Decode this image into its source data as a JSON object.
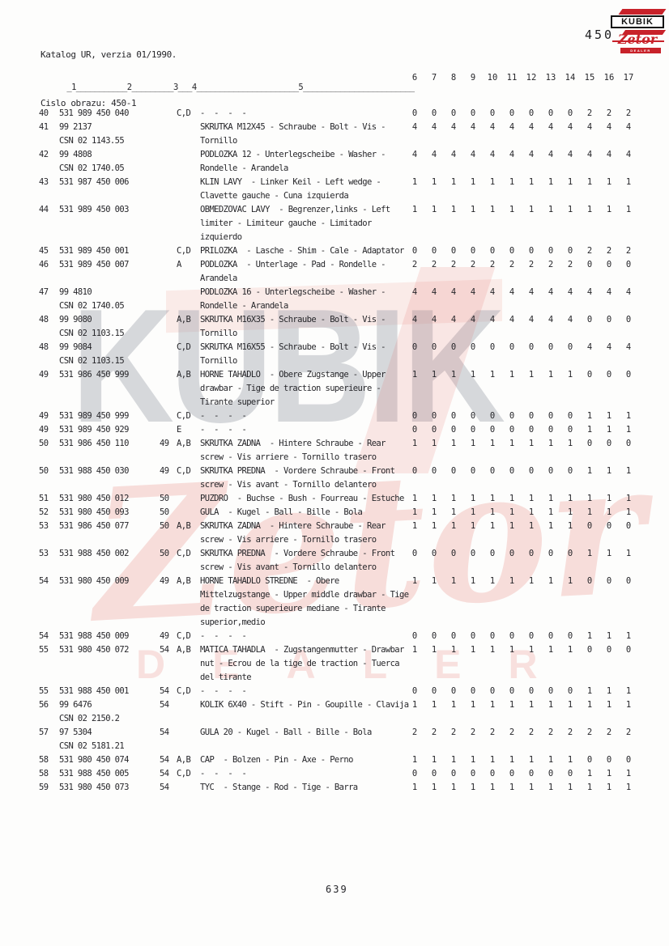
{
  "header": {
    "line1": "Katalog UR, verzia 01/1990.",
    "line2": "Cislo obrazu: 450-1",
    "page_ref": "450"
  },
  "logo": {
    "name": "KUBIK",
    "brand": "Zetor",
    "dealer": "DEALER"
  },
  "watermark": {
    "kubik": "KUBIK",
    "zetor": "Zetor",
    "dealer": "DEALER"
  },
  "colors": {
    "accent_red": "#c8222a",
    "text_ink": "#26262a"
  },
  "columns": {
    "ruler": "_1___________2_________3___4______________________5________________________",
    "qty_headers": [
      "6",
      "7",
      "8",
      "9",
      "10",
      "11",
      "12",
      "13",
      "14",
      "15",
      "16",
      "17"
    ]
  },
  "rows": [
    {
      "no": "40",
      "part": "531 989 450 040",
      "csn": "",
      "ref": "",
      "var": "C,D",
      "desc": [
        "-  -  -  -"
      ],
      "qty": [
        0,
        0,
        0,
        0,
        0,
        0,
        0,
        0,
        0,
        2,
        2,
        2
      ]
    },
    {
      "no": "41",
      "part": "99 2137",
      "csn": "CSN 02 1143.55",
      "ref": "",
      "var": "",
      "desc": [
        "SKRUTKA M12X45 - Schraube - Bolt - Vis -",
        "Tornillo"
      ],
      "qty": [
        4,
        4,
        4,
        4,
        4,
        4,
        4,
        4,
        4,
        4,
        4,
        4
      ]
    },
    {
      "no": "42",
      "part": "99 4808",
      "csn": "CSN 02 1740.05",
      "ref": "",
      "var": "",
      "desc": [
        "PODLOZKA 12 - Unterlegscheibe - Washer -",
        "Rondelle - Arandela"
      ],
      "qty": [
        4,
        4,
        4,
        4,
        4,
        4,
        4,
        4,
        4,
        4,
        4,
        4
      ]
    },
    {
      "no": "43",
      "part": "531 987 450 006",
      "csn": "",
      "ref": "",
      "var": "",
      "desc": [
        "KLIN LAVY  - Linker Keil - Left wedge -",
        "Clavette gauche - Cuna izquierda"
      ],
      "qty": [
        1,
        1,
        1,
        1,
        1,
        1,
        1,
        1,
        1,
        1,
        1,
        1
      ]
    },
    {
      "no": "44",
      "part": "531 989 450 003",
      "csn": "",
      "ref": "",
      "var": "",
      "desc": [
        "OBMEDZOVAC LAVY  - Begrenzer,links - Left",
        "limiter - Limiteur gauche - Limitador",
        "izquierdo"
      ],
      "qty": [
        1,
        1,
        1,
        1,
        1,
        1,
        1,
        1,
        1,
        1,
        1,
        1
      ]
    },
    {
      "no": "45",
      "part": "531 989 450 001",
      "csn": "",
      "ref": "",
      "var": "C,D",
      "desc": [
        "PRILOZKA  - Lasche - Shim - Cale - Adaptator"
      ],
      "qty": [
        0,
        0,
        0,
        0,
        0,
        0,
        0,
        0,
        0,
        2,
        2,
        2
      ]
    },
    {
      "no": "46",
      "part": "531 989 450 007",
      "csn": "",
      "ref": "",
      "var": "A",
      "desc": [
        "PODLOZKA  - Unterlage - Pad - Rondelle -",
        "Arandela"
      ],
      "qty": [
        2,
        2,
        2,
        2,
        2,
        2,
        2,
        2,
        2,
        0,
        0,
        0
      ]
    },
    {
      "no": "47",
      "part": "99 4810",
      "csn": "CSN 02 1740.05",
      "ref": "",
      "var": "",
      "desc": [
        "PODLOZKA 16 - Unterlegscheibe - Washer -",
        "Rondelle - Arandela"
      ],
      "qty": [
        4,
        4,
        4,
        4,
        4,
        4,
        4,
        4,
        4,
        4,
        4,
        4
      ]
    },
    {
      "no": "48",
      "part": "99 9080",
      "csn": "CSN 02 1103.15",
      "ref": "",
      "var": "A,B",
      "desc": [
        "SKRUTKA M16X35 - Schraube - Bolt - Vis -",
        "Tornillo"
      ],
      "qty": [
        4,
        4,
        4,
        4,
        4,
        4,
        4,
        4,
        4,
        0,
        0,
        0
      ]
    },
    {
      "no": "48",
      "part": "99 9084",
      "csn": "CSN 02 1103.15",
      "ref": "",
      "var": "C,D",
      "desc": [
        "SKRUTKA M16X55 - Schraube - Bolt - Vis -",
        "Tornillo"
      ],
      "qty": [
        0,
        0,
        0,
        0,
        0,
        0,
        0,
        0,
        0,
        4,
        4,
        4
      ]
    },
    {
      "no": "49",
      "part": "531 986 450 999",
      "csn": "",
      "ref": "",
      "var": "A,B",
      "desc": [
        "HORNE TAHADLO  - Obere Zugstange - Upper",
        "drawbar - Tige de traction superieure -",
        "Tirante superior"
      ],
      "qty": [
        1,
        1,
        1,
        1,
        1,
        1,
        1,
        1,
        1,
        0,
        0,
        0
      ]
    },
    {
      "no": "49",
      "part": "531 989 450 999",
      "csn": "",
      "ref": "",
      "var": "C,D",
      "desc": [
        "-  -  -  -"
      ],
      "qty": [
        0,
        0,
        0,
        0,
        0,
        0,
        0,
        0,
        0,
        1,
        1,
        1
      ]
    },
    {
      "no": "49",
      "part": "531 989 450 929",
      "csn": "",
      "ref": "",
      "var": "E",
      "desc": [
        "-  -  -  -"
      ],
      "qty": [
        0,
        0,
        0,
        0,
        0,
        0,
        0,
        0,
        0,
        1,
        1,
        1
      ]
    },
    {
      "no": "50",
      "part": "531 986 450 110",
      "csn": "",
      "ref": "49",
      "var": "A,B",
      "desc": [
        "SKRUTKA ZADNA  - Hintere Schraube - Rear",
        "screw - Vis arriere - Tornillo trasero"
      ],
      "qty": [
        1,
        1,
        1,
        1,
        1,
        1,
        1,
        1,
        1,
        0,
        0,
        0
      ]
    },
    {
      "no": "50",
      "part": "531 988 450 030",
      "csn": "",
      "ref": "49",
      "var": "C,D",
      "desc": [
        "SKRUTKA PREDNA  - Vordere Schraube - Front",
        "screw - Vis avant - Tornillo delantero"
      ],
      "qty": [
        0,
        0,
        0,
        0,
        0,
        0,
        0,
        0,
        0,
        1,
        1,
        1
      ]
    },
    {
      "no": "51",
      "part": "531 980 450 012",
      "csn": "",
      "ref": "50",
      "var": "",
      "desc": [
        "PUZDRO  - Buchse - Bush - Fourreau - Estuche"
      ],
      "qty": [
        1,
        1,
        1,
        1,
        1,
        1,
        1,
        1,
        1,
        1,
        1,
        1
      ]
    },
    {
      "no": "52",
      "part": "531 980 450 093",
      "csn": "",
      "ref": "50",
      "var": "",
      "desc": [
        "GULA  - Kugel - Ball - Bille - Bola"
      ],
      "qty": [
        1,
        1,
        1,
        1,
        1,
        1,
        1,
        1,
        1,
        1,
        1,
        1
      ]
    },
    {
      "no": "53",
      "part": "531 986 450 077",
      "csn": "",
      "ref": "50",
      "var": "A,B",
      "desc": [
        "SKRUTKA ZADNA  - Hintere Schraube - Rear",
        "screw - Vis arriere - Tornillo trasero"
      ],
      "qty": [
        1,
        1,
        1,
        1,
        1,
        1,
        1,
        1,
        1,
        0,
        0,
        0
      ]
    },
    {
      "no": "53",
      "part": "531 988 450 002",
      "csn": "",
      "ref": "50",
      "var": "C,D",
      "desc": [
        "SKRUTKA PREDNA  - Vordere Schraube - Front",
        "screw - Vis avant - Tornillo delantero"
      ],
      "qty": [
        0,
        0,
        0,
        0,
        0,
        0,
        0,
        0,
        0,
        1,
        1,
        1
      ]
    },
    {
      "no": "54",
      "part": "531 980 450 009",
      "csn": "",
      "ref": "49",
      "var": "A,B",
      "desc": [
        "HORNE TAHADLO STREDNE  - Obere",
        "Mittelzugstange - Upper middle drawbar - Tige",
        "de traction superieure mediane - Tirante",
        "superior,medio"
      ],
      "qty": [
        1,
        1,
        1,
        1,
        1,
        1,
        1,
        1,
        1,
        0,
        0,
        0
      ]
    },
    {
      "no": "54",
      "part": "531 988 450 009",
      "csn": "",
      "ref": "49",
      "var": "C,D",
      "desc": [
        "-  -  -  -"
      ],
      "qty": [
        0,
        0,
        0,
        0,
        0,
        0,
        0,
        0,
        0,
        1,
        1,
        1
      ]
    },
    {
      "no": "55",
      "part": "531 980 450 072",
      "csn": "",
      "ref": "54",
      "var": "A,B",
      "desc": [
        "MATICA TAHADLA  - Zugstangenmutter - Drawbar",
        "nut - Ecrou de la tige de traction - Tuerca",
        "del tirante"
      ],
      "qty": [
        1,
        1,
        1,
        1,
        1,
        1,
        1,
        1,
        1,
        0,
        0,
        0
      ]
    },
    {
      "no": "55",
      "part": "531 988 450 001",
      "csn": "",
      "ref": "54",
      "var": "C,D",
      "desc": [
        "-  -  -  -"
      ],
      "qty": [
        0,
        0,
        0,
        0,
        0,
        0,
        0,
        0,
        0,
        1,
        1,
        1
      ]
    },
    {
      "no": "56",
      "part": "99 6476",
      "csn": "CSN 02 2150.2",
      "ref": "54",
      "var": "",
      "desc": [
        "KOLIK 6X40 - Stift - Pin - Goupille - Clavija"
      ],
      "qty": [
        1,
        1,
        1,
        1,
        1,
        1,
        1,
        1,
        1,
        1,
        1,
        1
      ]
    },
    {
      "no": "57",
      "part": "97 5304",
      "csn": "CSN 02 5181.21",
      "ref": "54",
      "var": "",
      "desc": [
        "GULA 20 - Kugel - Ball - Bille - Bola"
      ],
      "qty": [
        2,
        2,
        2,
        2,
        2,
        2,
        2,
        2,
        2,
        2,
        2,
        2
      ]
    },
    {
      "no": "58",
      "part": "531 980 450 074",
      "csn": "",
      "ref": "54",
      "var": "A,B",
      "desc": [
        "CAP  - Bolzen - Pin - Axe - Perno"
      ],
      "qty": [
        1,
        1,
        1,
        1,
        1,
        1,
        1,
        1,
        1,
        0,
        0,
        0
      ]
    },
    {
      "no": "58",
      "part": "531 988 450 005",
      "csn": "",
      "ref": "54",
      "var": "C,D",
      "desc": [
        "-  -  -  -"
      ],
      "qty": [
        0,
        0,
        0,
        0,
        0,
        0,
        0,
        0,
        0,
        1,
        1,
        1
      ]
    },
    {
      "no": "59",
      "part": "531 980 450 073",
      "csn": "",
      "ref": "54",
      "var": "",
      "desc": [
        "TYC  - Stange - Rod - Tige - Barra"
      ],
      "qty": [
        1,
        1,
        1,
        1,
        1,
        1,
        1,
        1,
        1,
        1,
        1,
        1
      ]
    }
  ],
  "footer": {
    "page_number": "639"
  }
}
